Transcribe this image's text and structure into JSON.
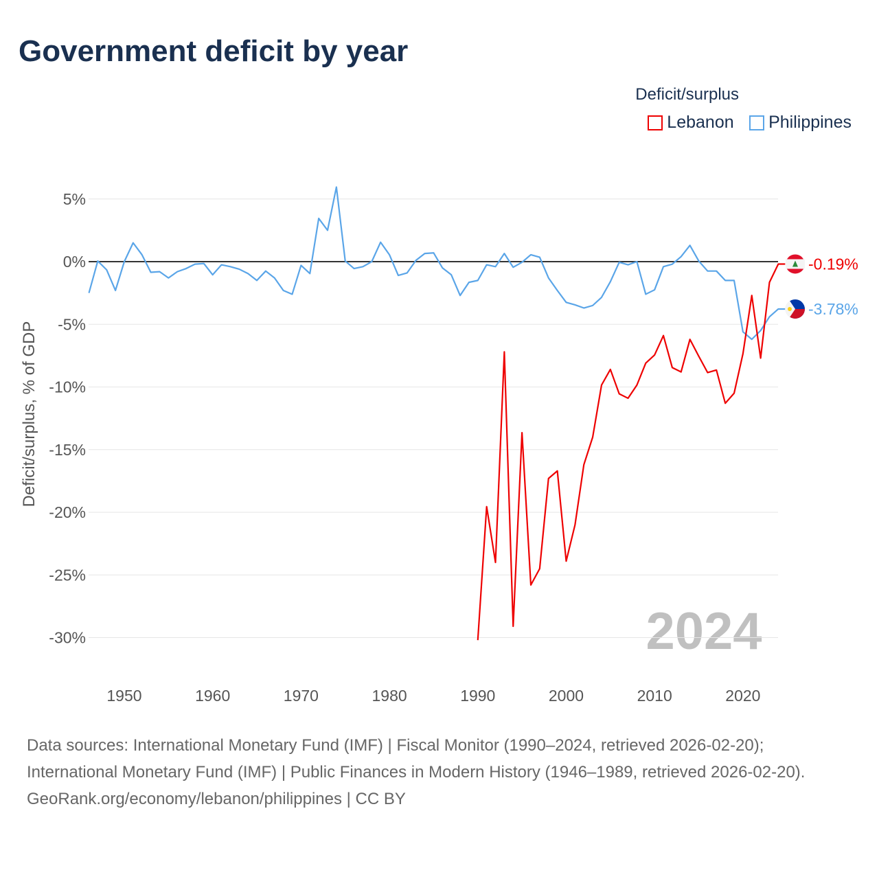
{
  "title": "Government deficit by year",
  "legend": {
    "title": "Deficit/surplus",
    "items": [
      {
        "label": "Lebanon",
        "color": "#ee0000"
      },
      {
        "label": "Philippines",
        "color": "#5aa5e8"
      }
    ]
  },
  "year_watermark": "2024",
  "sources": {
    "line1": "Data sources: International Monetary Fund (IMF) | Fiscal Monitor (1990–2024, retrieved 2026-02-20); International Monetary Fund (IMF) | Public Finances in Modern History (1946–1989, retrieved 2026-02-20).",
    "line2": "GeoRank.org/economy/lebanon/philippines | CC BY"
  },
  "chart_data": {
    "type": "line",
    "title": "Government deficit by year",
    "xlabel": "",
    "ylabel": "Deficit/surplus, % of GDP",
    "xlim": [
      1946,
      2024
    ],
    "ylim": [
      -33,
      7
    ],
    "x_ticks": [
      1950,
      1960,
      1970,
      1980,
      1990,
      2000,
      2010,
      2020
    ],
    "y_ticks": [
      5,
      0,
      -5,
      -10,
      -15,
      -20,
      -25,
      -30
    ],
    "y_tick_labels": [
      "5%",
      "0%",
      "-5%",
      "-10%",
      "-15%",
      "-20%",
      "-25%",
      "-30%"
    ],
    "grid": true,
    "legend_position": "top-right",
    "series": [
      {
        "name": "Lebanon",
        "color": "#ee0000",
        "end_label": "-0.19%",
        "start_year": 1990,
        "values": [
          -30.2,
          -19.55,
          -24.0,
          -7.2,
          -29.1,
          -13.65,
          -25.8,
          -24.5,
          -17.3,
          -16.7,
          -23.9,
          -21.0,
          -16.2,
          -14.0,
          -9.85,
          -8.6,
          -10.55,
          -10.9,
          -9.85,
          -8.1,
          -7.45,
          -5.9,
          -8.45,
          -8.8,
          -6.2,
          -7.55,
          -8.85,
          -8.65,
          -11.3,
          -10.5,
          -7.35,
          -2.7,
          -7.7,
          -1.65,
          -0.19
        ]
      },
      {
        "name": "Philippines",
        "color": "#5aa5e8",
        "end_label": "-3.78%",
        "start_year": 1946,
        "values": [
          -2.5,
          0.05,
          -0.65,
          -2.3,
          0,
          1.5,
          0.55,
          -0.85,
          -0.8,
          -1.3,
          -0.8,
          -0.55,
          -0.2,
          -0.15,
          -1.05,
          -0.25,
          -0.4,
          -0.6,
          -0.95,
          -1.5,
          -0.75,
          -1.3,
          -2.3,
          -2.6,
          -0.3,
          -0.95,
          3.45,
          2.5,
          5.95,
          0.05,
          -0.55,
          -0.4,
          0,
          1.55,
          0.55,
          -1.1,
          -0.9,
          0.1,
          0.65,
          0.7,
          -0.5,
          -1.05,
          -2.7,
          -1.65,
          -1.5,
          -0.25,
          -0.4,
          0.65,
          -0.45,
          -0.05,
          0.55,
          0.35,
          -1.3,
          -2.3,
          -3.25,
          -3.45,
          -3.7,
          -3.5,
          -2.85,
          -1.6,
          -0.05,
          -0.25,
          0,
          -2.6,
          -2.25,
          -0.4,
          -0.2,
          0.4,
          1.3,
          0.05,
          -0.75,
          -0.75,
          -1.5,
          -1.5,
          -5.6,
          -6.2,
          -5.5,
          -4.4,
          -3.78
        ]
      }
    ]
  }
}
